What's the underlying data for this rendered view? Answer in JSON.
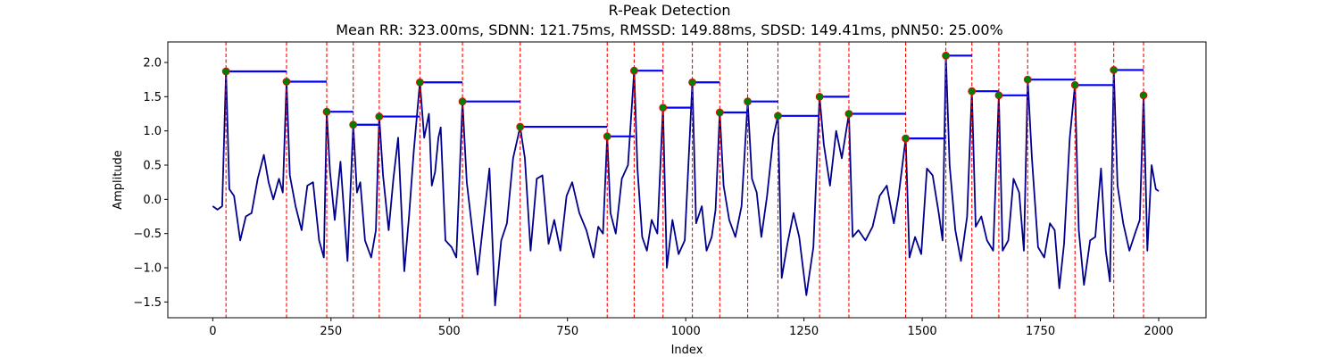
{
  "figure": {
    "title": "R-Peak Detection",
    "subtitle": "Mean RR: 323.00ms, SDNN: 121.75ms, RMSSD: 149.88ms, SDSD: 149.41ms, pNN50: 25.00%"
  },
  "chart_data": {
    "type": "line",
    "title": "R-Peak Detection",
    "subtitle": "Mean RR: 323.00ms, SDNN: 121.75ms, RMSSD: 149.88ms, SDSD: 149.41ms, pNN50: 25.00%",
    "xlabel": "Index",
    "ylabel": "Amplitude",
    "xlim": [
      -95,
      2100
    ],
    "ylim": [
      -1.73,
      2.3
    ],
    "xticks": [
      0,
      250,
      500,
      750,
      1000,
      1250,
      1500,
      1750,
      2000
    ],
    "xtick_labels": [
      "0",
      "250",
      "500",
      "750",
      "1000",
      "1250",
      "1500",
      "1750",
      "2000"
    ],
    "yticks": [
      -1.5,
      -1.0,
      -0.5,
      0.0,
      0.5,
      1.0,
      1.5,
      2.0
    ],
    "ytick_labels": [
      "−1.5",
      "−1.0",
      "−0.5",
      "0.0",
      "0.5",
      "1.0",
      "1.5",
      "2.0"
    ],
    "grid": false,
    "colors": {
      "signal": "#00008b",
      "peak_line": "#ff0000",
      "rr_interval": "#0000ff",
      "peak_marker_fill": "#008000",
      "peak_marker_edge": "#ff0000"
    },
    "peaks": {
      "x": [
        28,
        156,
        241,
        297,
        352,
        438,
        528,
        650,
        834,
        891,
        952,
        1014,
        1072,
        1131,
        1195,
        1283,
        1345,
        1465,
        1550,
        1605,
        1662,
        1723,
        1823,
        1905,
        1968
      ],
      "y": [
        1.87,
        1.72,
        1.28,
        1.09,
        1.21,
        1.71,
        1.43,
        1.06,
        0.92,
        1.88,
        1.34,
        1.71,
        1.27,
        1.43,
        1.22,
        1.5,
        1.25,
        0.89,
        2.1,
        1.58,
        1.52,
        1.75,
        1.67,
        1.89,
        1.52
      ]
    },
    "signal": {
      "x": [
        0,
        10,
        20,
        28,
        35,
        45,
        58,
        70,
        82,
        95,
        108,
        118,
        128,
        140,
        148,
        156,
        163,
        175,
        188,
        200,
        212,
        225,
        235,
        241,
        248,
        258,
        270,
        285,
        297,
        305,
        312,
        322,
        335,
        345,
        352,
        360,
        372,
        382,
        392,
        405,
        415,
        425,
        438,
        447,
        457,
        463,
        470,
        477,
        482,
        492,
        505,
        515,
        528,
        537,
        547,
        560,
        572,
        585,
        597,
        610,
        622,
        635,
        650,
        660,
        672,
        685,
        697,
        710,
        722,
        735,
        748,
        760,
        775,
        790,
        805,
        815,
        825,
        834,
        841,
        852,
        865,
        878,
        891,
        898,
        908,
        918,
        928,
        940,
        952,
        960,
        972,
        985,
        998,
        1014,
        1022,
        1034,
        1044,
        1055,
        1063,
        1072,
        1080,
        1092,
        1105,
        1118,
        1131,
        1140,
        1150,
        1160,
        1172,
        1185,
        1195,
        1203,
        1215,
        1228,
        1240,
        1255,
        1270,
        1283,
        1292,
        1305,
        1318,
        1330,
        1345,
        1353,
        1365,
        1380,
        1395,
        1410,
        1425,
        1440,
        1450,
        1465,
        1473,
        1485,
        1498,
        1510,
        1522,
        1535,
        1543,
        1550,
        1558,
        1570,
        1582,
        1595,
        1605,
        1613,
        1625,
        1637,
        1650,
        1662,
        1670,
        1682,
        1693,
        1705,
        1715,
        1723,
        1732,
        1745,
        1758,
        1770,
        1780,
        1790,
        1800,
        1812,
        1823,
        1831,
        1842,
        1855,
        1866,
        1878,
        1888,
        1897,
        1905,
        1913,
        1925,
        1938,
        1950,
        1960,
        1968,
        1976,
        1985,
        1994,
        2000
      ],
      "y": [
        -0.1,
        -0.15,
        -0.1,
        1.87,
        0.15,
        0.05,
        -0.6,
        -0.25,
        -0.2,
        0.3,
        0.65,
        0.25,
        0.0,
        0.3,
        0.1,
        1.72,
        0.35,
        -0.1,
        -0.45,
        0.2,
        0.25,
        -0.6,
        -0.85,
        1.28,
        0.4,
        -0.3,
        0.55,
        -0.9,
        1.09,
        0.1,
        0.25,
        -0.6,
        -0.85,
        -0.45,
        1.21,
        0.35,
        -0.45,
        0.3,
        0.9,
        -1.05,
        -0.25,
        0.7,
        1.71,
        0.9,
        1.25,
        0.2,
        0.4,
        0.9,
        1.05,
        -0.6,
        -0.7,
        -0.85,
        1.43,
        0.25,
        -0.35,
        -1.1,
        -0.35,
        0.45,
        -1.55,
        -0.6,
        -0.35,
        0.6,
        1.06,
        0.6,
        -0.75,
        0.3,
        0.35,
        -0.65,
        -0.3,
        -0.75,
        0.05,
        0.25,
        -0.2,
        -0.45,
        -0.85,
        -0.4,
        -0.5,
        0.92,
        -0.2,
        -0.5,
        0.3,
        0.5,
        1.88,
        0.45,
        -0.55,
        -0.75,
        -0.3,
        -0.5,
        1.34,
        -1.0,
        -0.3,
        -0.8,
        -0.6,
        1.71,
        -0.35,
        -0.1,
        -0.75,
        -0.55,
        -0.15,
        1.27,
        0.2,
        -0.3,
        -0.55,
        -0.1,
        1.43,
        0.3,
        0.1,
        -0.55,
        0.05,
        0.9,
        1.22,
        -1.15,
        -0.65,
        -0.2,
        -0.55,
        -1.4,
        -0.7,
        1.5,
        0.8,
        0.2,
        1.0,
        0.6,
        1.25,
        -0.55,
        -0.45,
        -0.6,
        -0.4,
        0.05,
        0.2,
        -0.35,
        0.05,
        0.89,
        -0.85,
        -0.55,
        -0.8,
        0.45,
        0.35,
        -0.2,
        -0.6,
        2.1,
        0.5,
        -0.45,
        -0.9,
        -0.25,
        1.58,
        -0.4,
        -0.25,
        -0.6,
        -0.75,
        1.52,
        -0.75,
        -0.6,
        0.3,
        0.1,
        -0.75,
        1.75,
        0.6,
        -0.7,
        -0.85,
        -0.35,
        -0.45,
        -1.3,
        -0.65,
        0.9,
        1.67,
        -0.45,
        -1.25,
        -0.6,
        -0.55,
        0.45,
        -0.75,
        -1.2,
        1.89,
        0.2,
        -0.35,
        -0.75,
        -0.5,
        -0.3,
        1.52,
        -0.75,
        0.5,
        0.15,
        0.12
      ]
    }
  }
}
